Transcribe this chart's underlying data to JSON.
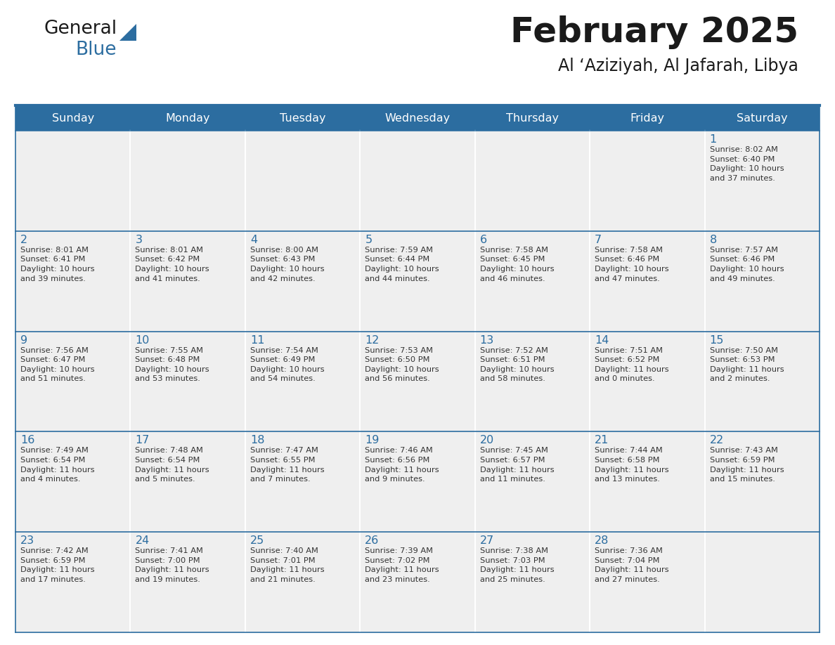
{
  "title": "February 2025",
  "subtitle": "Al ‘Aziziyah, Al Jafarah, Libya",
  "header_bg": "#2C6DA0",
  "header_text": "#FFFFFF",
  "cell_bg": "#EFEFEF",
  "day_num_color": "#2C6DA0",
  "text_color": "#333333",
  "line_color": "#2C6DA0",
  "border_color": "#2C6DA0",
  "days_of_week": [
    "Sunday",
    "Monday",
    "Tuesday",
    "Wednesday",
    "Thursday",
    "Friday",
    "Saturday"
  ],
  "weeks": [
    [
      {
        "day": null,
        "info": null
      },
      {
        "day": null,
        "info": null
      },
      {
        "day": null,
        "info": null
      },
      {
        "day": null,
        "info": null
      },
      {
        "day": null,
        "info": null
      },
      {
        "day": null,
        "info": null
      },
      {
        "day": 1,
        "info": "Sunrise: 8:02 AM\nSunset: 6:40 PM\nDaylight: 10 hours\nand 37 minutes."
      }
    ],
    [
      {
        "day": 2,
        "info": "Sunrise: 8:01 AM\nSunset: 6:41 PM\nDaylight: 10 hours\nand 39 minutes."
      },
      {
        "day": 3,
        "info": "Sunrise: 8:01 AM\nSunset: 6:42 PM\nDaylight: 10 hours\nand 41 minutes."
      },
      {
        "day": 4,
        "info": "Sunrise: 8:00 AM\nSunset: 6:43 PM\nDaylight: 10 hours\nand 42 minutes."
      },
      {
        "day": 5,
        "info": "Sunrise: 7:59 AM\nSunset: 6:44 PM\nDaylight: 10 hours\nand 44 minutes."
      },
      {
        "day": 6,
        "info": "Sunrise: 7:58 AM\nSunset: 6:45 PM\nDaylight: 10 hours\nand 46 minutes."
      },
      {
        "day": 7,
        "info": "Sunrise: 7:58 AM\nSunset: 6:46 PM\nDaylight: 10 hours\nand 47 minutes."
      },
      {
        "day": 8,
        "info": "Sunrise: 7:57 AM\nSunset: 6:46 PM\nDaylight: 10 hours\nand 49 minutes."
      }
    ],
    [
      {
        "day": 9,
        "info": "Sunrise: 7:56 AM\nSunset: 6:47 PM\nDaylight: 10 hours\nand 51 minutes."
      },
      {
        "day": 10,
        "info": "Sunrise: 7:55 AM\nSunset: 6:48 PM\nDaylight: 10 hours\nand 53 minutes."
      },
      {
        "day": 11,
        "info": "Sunrise: 7:54 AM\nSunset: 6:49 PM\nDaylight: 10 hours\nand 54 minutes."
      },
      {
        "day": 12,
        "info": "Sunrise: 7:53 AM\nSunset: 6:50 PM\nDaylight: 10 hours\nand 56 minutes."
      },
      {
        "day": 13,
        "info": "Sunrise: 7:52 AM\nSunset: 6:51 PM\nDaylight: 10 hours\nand 58 minutes."
      },
      {
        "day": 14,
        "info": "Sunrise: 7:51 AM\nSunset: 6:52 PM\nDaylight: 11 hours\nand 0 minutes."
      },
      {
        "day": 15,
        "info": "Sunrise: 7:50 AM\nSunset: 6:53 PM\nDaylight: 11 hours\nand 2 minutes."
      }
    ],
    [
      {
        "day": 16,
        "info": "Sunrise: 7:49 AM\nSunset: 6:54 PM\nDaylight: 11 hours\nand 4 minutes."
      },
      {
        "day": 17,
        "info": "Sunrise: 7:48 AM\nSunset: 6:54 PM\nDaylight: 11 hours\nand 5 minutes."
      },
      {
        "day": 18,
        "info": "Sunrise: 7:47 AM\nSunset: 6:55 PM\nDaylight: 11 hours\nand 7 minutes."
      },
      {
        "day": 19,
        "info": "Sunrise: 7:46 AM\nSunset: 6:56 PM\nDaylight: 11 hours\nand 9 minutes."
      },
      {
        "day": 20,
        "info": "Sunrise: 7:45 AM\nSunset: 6:57 PM\nDaylight: 11 hours\nand 11 minutes."
      },
      {
        "day": 21,
        "info": "Sunrise: 7:44 AM\nSunset: 6:58 PM\nDaylight: 11 hours\nand 13 minutes."
      },
      {
        "day": 22,
        "info": "Sunrise: 7:43 AM\nSunset: 6:59 PM\nDaylight: 11 hours\nand 15 minutes."
      }
    ],
    [
      {
        "day": 23,
        "info": "Sunrise: 7:42 AM\nSunset: 6:59 PM\nDaylight: 11 hours\nand 17 minutes."
      },
      {
        "day": 24,
        "info": "Sunrise: 7:41 AM\nSunset: 7:00 PM\nDaylight: 11 hours\nand 19 minutes."
      },
      {
        "day": 25,
        "info": "Sunrise: 7:40 AM\nSunset: 7:01 PM\nDaylight: 11 hours\nand 21 minutes."
      },
      {
        "day": 26,
        "info": "Sunrise: 7:39 AM\nSunset: 7:02 PM\nDaylight: 11 hours\nand 23 minutes."
      },
      {
        "day": 27,
        "info": "Sunrise: 7:38 AM\nSunset: 7:03 PM\nDaylight: 11 hours\nand 25 minutes."
      },
      {
        "day": 28,
        "info": "Sunrise: 7:36 AM\nSunset: 7:04 PM\nDaylight: 11 hours\nand 27 minutes."
      },
      {
        "day": null,
        "info": null
      }
    ]
  ],
  "fig_width": 11.88,
  "fig_height": 9.18,
  "dpi": 100
}
